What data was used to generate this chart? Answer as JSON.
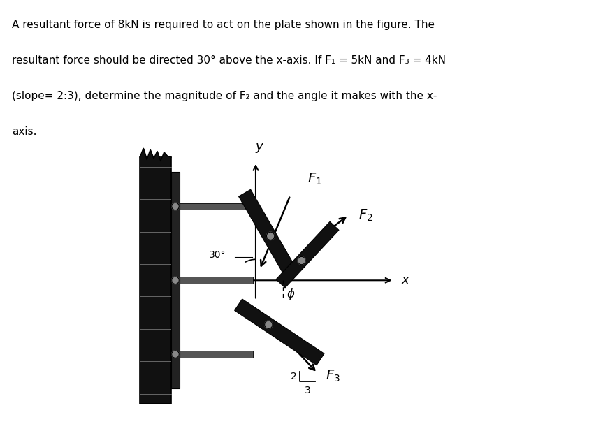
{
  "fig_width": 8.73,
  "fig_height": 6.27,
  "bg_color": "#ffffff",
  "wall_color": "#111111",
  "bar_color": "#111111",
  "axis_color": "#000000",
  "F1_label": "$\\mathit{F_1}$",
  "F2_label": "$\\mathit{F_2}$",
  "F3_label": "$\\mathit{F_3}$",
  "angle_30_label": "30°",
  "phi_label": "$\\phi$",
  "slope_2": "2",
  "slope_3": "3",
  "x_label": "$\\mathit{x}$",
  "y_label": "$\\mathit{y}$",
  "text_lines": [
    "A resultant force of 8kN is required to act on the plate shown in the figure. The",
    "resultant force should be directed 30° above the x-axis. If F₁ = 5kN and F₃ = 4kN",
    "(slope= 2:3), determine the magnitude of F₂ and the angle it makes with the x-",
    "axis."
  ]
}
